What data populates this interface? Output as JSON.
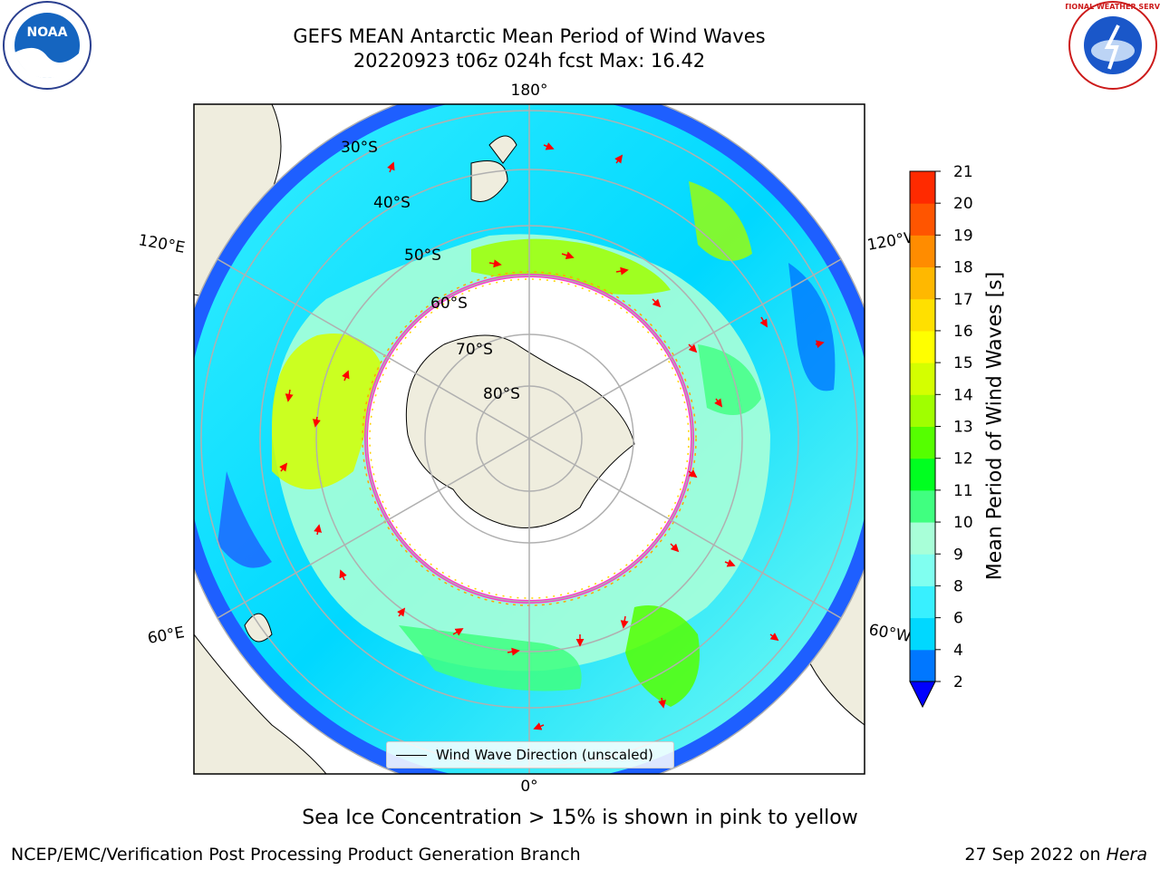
{
  "title": {
    "line1": "GEFS MEAN Antarctic Mean Period of Wind Waves",
    "line2": "20220923 t06z 024h fcst   Max: 16.42"
  },
  "map": {
    "projection": "south-polar-stereographic",
    "meridian_labels": {
      "top": "180°",
      "bottom": "0°",
      "upper_left": "120°E",
      "upper_right": "120°W",
      "lower_left": "60°E",
      "lower_right": "60°W"
    },
    "parallel_labels": [
      "30°S",
      "40°S",
      "50°S",
      "60°S",
      "70°S",
      "80°S"
    ],
    "land_color": "#efedde",
    "ocean_color": "#ffffff",
    "grid_color": "#b0b0b0",
    "arrow_color": "#ff0000",
    "ice_edge_colors": [
      "#ff33cc",
      "#ffa500",
      "#ffd400"
    ]
  },
  "legend": {
    "label": "Wind Wave Direction (unscaled)"
  },
  "colorbar": {
    "label": "Mean Period of Wind Waves [s]",
    "ticks": [
      "2",
      "4",
      "6",
      "8",
      "9",
      "10",
      "11",
      "12",
      "13",
      "14",
      "15",
      "16",
      "17",
      "18",
      "19",
      "20",
      "21"
    ],
    "colors": [
      "#0000ff",
      "#0077ff",
      "#00d8ff",
      "#38f0ff",
      "#80fff0",
      "#a8ffd8",
      "#40ff80",
      "#00ff20",
      "#55ff00",
      "#a0ff00",
      "#d4ff00",
      "#ffff00",
      "#ffe000",
      "#ffb800",
      "#ff8c00",
      "#ff5500",
      "#ff2a00",
      "#ff0000"
    ],
    "extend": "min"
  },
  "footer": {
    "ice_note": "Sea Ice Concentration > 15% is shown in pink to yellow",
    "credit": "NCEP/EMC/Verification Post Processing Product Generation Branch",
    "date": "27 Sep 2022 on",
    "host": "Hera"
  },
  "logos": {
    "noaa": "NOAA",
    "nws": "NATIONAL WEATHER SERVICE"
  }
}
